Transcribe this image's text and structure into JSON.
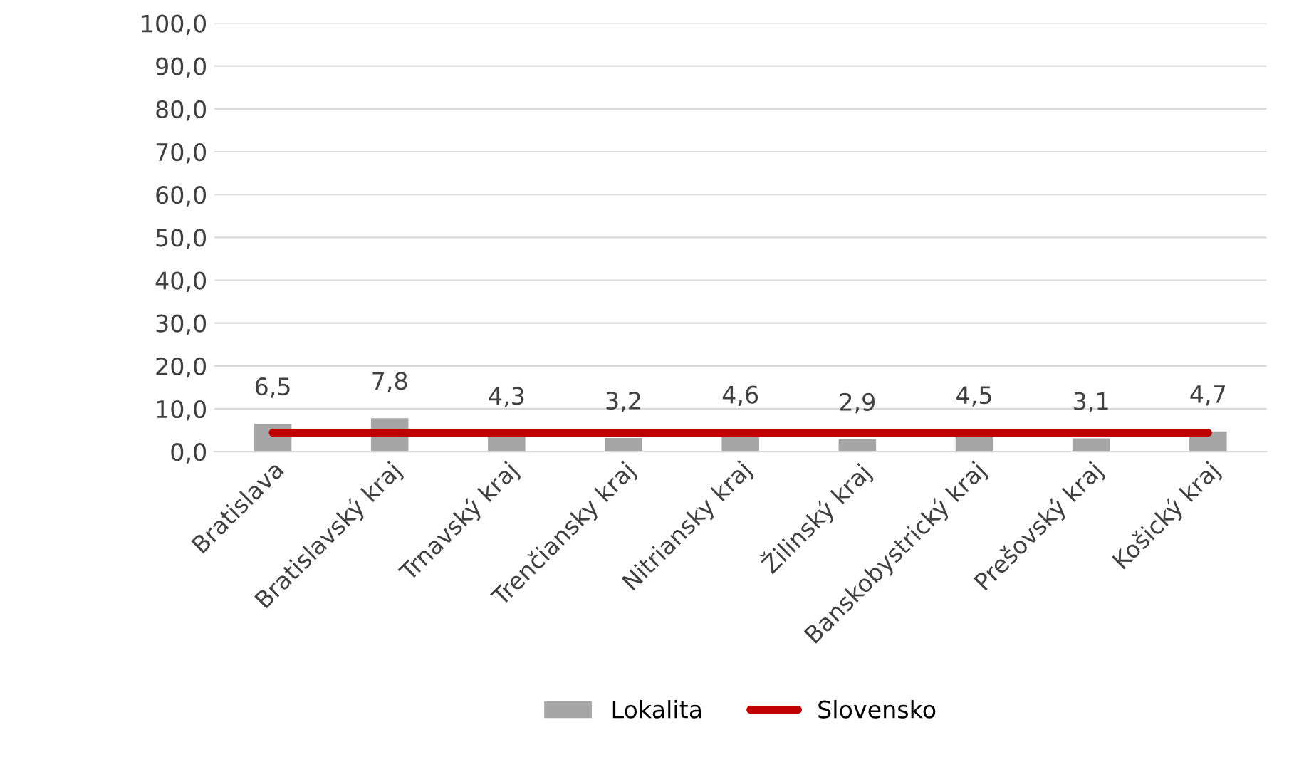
{
  "chart_data": {
    "type": "bar",
    "categories": [
      "Bratislava",
      "Bratislavský kraj",
      "Trnavský kraj",
      "Trenčiansky kraj",
      "Nitriansky kraj",
      "Žilinský kraj",
      "Banskobystrický kraj",
      "Prešovský kraj",
      "Košický kraj"
    ],
    "series": [
      {
        "name": "Lokalita",
        "color": "#a5a5a5",
        "values": [
          6.5,
          7.8,
          4.3,
          3.2,
          4.6,
          2.9,
          4.5,
          3.1,
          4.7
        ],
        "value_labels": [
          "6,5",
          "7,8",
          "4,3",
          "3,2",
          "4,6",
          "2,9",
          "4,5",
          "3,1",
          "4,7"
        ]
      },
      {
        "name": "Slovensko",
        "type": "line",
        "color": "#c00000",
        "values": [
          4.4,
          4.4,
          4.4,
          4.4,
          4.4,
          4.4,
          4.4,
          4.4,
          4.4
        ]
      }
    ],
    "ylim": [
      0,
      100
    ],
    "yticks": [
      {
        "value": 0,
        "label": "0,0"
      },
      {
        "value": 10,
        "label": "10,0"
      },
      {
        "value": 20,
        "label": "20,0"
      },
      {
        "value": 30,
        "label": "30,0"
      },
      {
        "value": 40,
        "label": "40,0"
      },
      {
        "value": 50,
        "label": "50,0"
      },
      {
        "value": 60,
        "label": "60,0"
      },
      {
        "value": 70,
        "label": "70,0"
      },
      {
        "value": 80,
        "label": "80,0"
      },
      {
        "value": 90,
        "label": "90,0"
      },
      {
        "value": 100,
        "label": "100,0"
      }
    ],
    "grid": "y",
    "legend": "bottom"
  }
}
